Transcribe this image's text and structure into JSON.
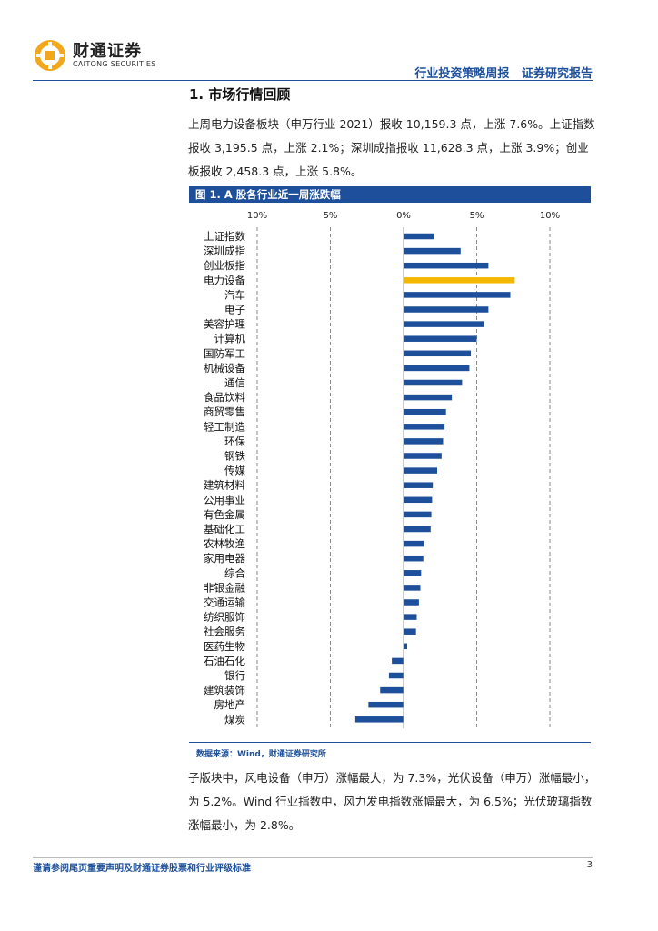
{
  "header": {
    "logo_cn": "财通证券",
    "logo_en": "CAITONG SECURITIES",
    "report_type": "行业投资策略周报",
    "report_category": "证券研究报告"
  },
  "section": {
    "title": "1.  市场行情回顾"
  },
  "paragraph1": "上周电力设备板块（申万行业 2021）报收 10,159.3 点，上涨 7.6%。上证指数报收 3,195.5 点，上涨 2.1%；深圳成指报收 11,628.3 点，上涨 3.9%；创业板报收 2,458.3 点，上涨 5.8%。",
  "figure": {
    "title": "图 1. A 股各行业近一周涨跌幅",
    "source": "数据来源：Wind，财通证券研究所"
  },
  "chart_data": {
    "type": "bar",
    "orientation": "horizontal",
    "title": "图 1. A 股各行业近一周涨跌幅",
    "xlim": [
      -10,
      10
    ],
    "ticks": [
      -10,
      -5,
      0,
      5,
      10
    ],
    "tick_labels": [
      "10%",
      "5%",
      "0%",
      "5%",
      "10%"
    ],
    "categories": [
      "上证指数",
      "深圳成指",
      "创业板指",
      "电力设备",
      "汽车",
      "电子",
      "美容护理",
      "计算机",
      "国防军工",
      "机械设备",
      "通信",
      "食品饮料",
      "商贸零售",
      "轻工制造",
      "环保",
      "钢铁",
      "传媒",
      "建筑材料",
      "公用事业",
      "有色金属",
      "基础化工",
      "农林牧渔",
      "家用电器",
      "综合",
      "非银金融",
      "交通运输",
      "纺织服饰",
      "社会服务",
      "医药生物",
      "石油石化",
      "银行",
      "建筑装饰",
      "房地产",
      "煤炭"
    ],
    "values": [
      2.1,
      3.9,
      5.8,
      7.6,
      7.3,
      5.8,
      5.5,
      5.0,
      4.6,
      4.5,
      4.0,
      3.3,
      2.9,
      2.8,
      2.7,
      2.6,
      2.3,
      2.0,
      1.95,
      1.9,
      1.85,
      1.4,
      1.35,
      1.2,
      1.15,
      1.05,
      0.9,
      0.85,
      0.25,
      -0.8,
      -1.0,
      -1.6,
      -2.4,
      -3.3
    ],
    "highlight": "电力设备",
    "colors": {
      "bar": "#1d4f9a",
      "highlight": "#f5b800"
    }
  },
  "paragraph2": "子版块中，风电设备（申万）涨幅最大，为 7.3%，光伏设备（申万）涨幅最小，为 5.2%。Wind 行业指数中，风力发电指数涨幅最大，为 6.5%；光伏玻璃指数涨幅最小，为 2.8%。",
  "footer": {
    "disclaimer": "谨请参阅尾页重要声明及财通证券股票和行业评级标准",
    "page_number": "3"
  }
}
